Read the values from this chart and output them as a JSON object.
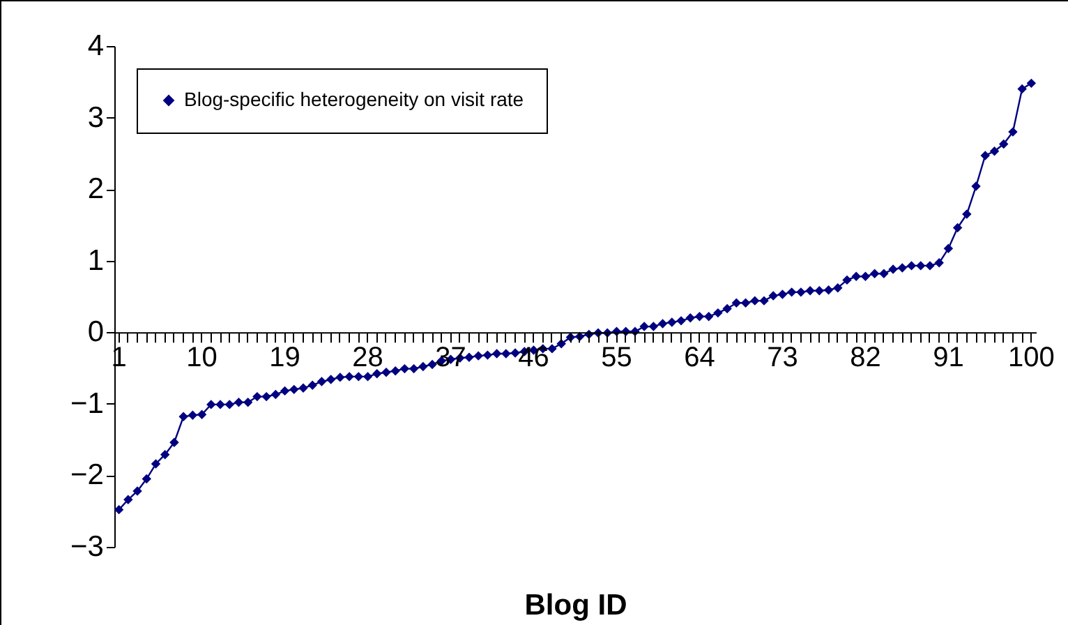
{
  "chart_data": {
    "type": "line",
    "xlabel": "Blog ID",
    "categories": [
      "1",
      null,
      null,
      null,
      null,
      null,
      null,
      null,
      null,
      "10",
      null,
      null,
      null,
      null,
      null,
      null,
      null,
      null,
      "19",
      null,
      null,
      null,
      null,
      null,
      null,
      null,
      null,
      "28",
      null,
      null,
      null,
      null,
      null,
      null,
      null,
      null,
      "37",
      null,
      null,
      null,
      null,
      null,
      null,
      null,
      null,
      "46",
      null,
      null,
      null,
      null,
      null,
      null,
      null,
      null,
      "55",
      null,
      null,
      null,
      null,
      null,
      null,
      null,
      null,
      "64",
      null,
      null,
      null,
      null,
      null,
      null,
      null,
      null,
      "73",
      null,
      null,
      null,
      null,
      null,
      null,
      null,
      null,
      "82",
      null,
      null,
      null,
      null,
      null,
      null,
      null,
      null,
      "91",
      null,
      null,
      null,
      null,
      null,
      null,
      null,
      null,
      "100"
    ],
    "series": [
      {
        "name": "Blog-specific heterogeneity on visit rate",
        "color": "#000080",
        "values": [
          -2.48,
          -2.34,
          -2.22,
          -2.05,
          -1.84,
          -1.71,
          -1.54,
          -1.18,
          -1.16,
          -1.15,
          -1.01,
          -1.01,
          -1.01,
          -0.98,
          -0.98,
          -0.9,
          -0.9,
          -0.87,
          -0.82,
          -0.8,
          -0.78,
          -0.74,
          -0.69,
          -0.66,
          -0.63,
          -0.62,
          -0.62,
          -0.62,
          -0.58,
          -0.56,
          -0.54,
          -0.51,
          -0.51,
          -0.48,
          -0.45,
          -0.4,
          -0.38,
          -0.36,
          -0.35,
          -0.33,
          -0.32,
          -0.3,
          -0.3,
          -0.29,
          -0.27,
          -0.25,
          -0.23,
          -0.23,
          -0.16,
          -0.07,
          -0.06,
          -0.03,
          -0.01,
          -0.01,
          0.01,
          0.01,
          0.01,
          0.08,
          0.08,
          0.12,
          0.14,
          0.16,
          0.2,
          0.22,
          0.22,
          0.27,
          0.33,
          0.41,
          0.41,
          0.44,
          0.44,
          0.51,
          0.53,
          0.56,
          0.56,
          0.58,
          0.58,
          0.59,
          0.62,
          0.73,
          0.78,
          0.78,
          0.82,
          0.82,
          0.88,
          0.9,
          0.93,
          0.93,
          0.93,
          0.97,
          1.17,
          1.46,
          1.65,
          2.04,
          2.47,
          2.53,
          2.63,
          2.8,
          3.4,
          3.48
        ]
      }
    ],
    "ylim": [
      -3,
      4
    ],
    "yticks": [
      -3,
      -2,
      -1,
      0,
      1,
      2,
      3,
      4
    ],
    "grid": false,
    "legend": "top left",
    "marker": "diamond",
    "line_style": "solid"
  }
}
